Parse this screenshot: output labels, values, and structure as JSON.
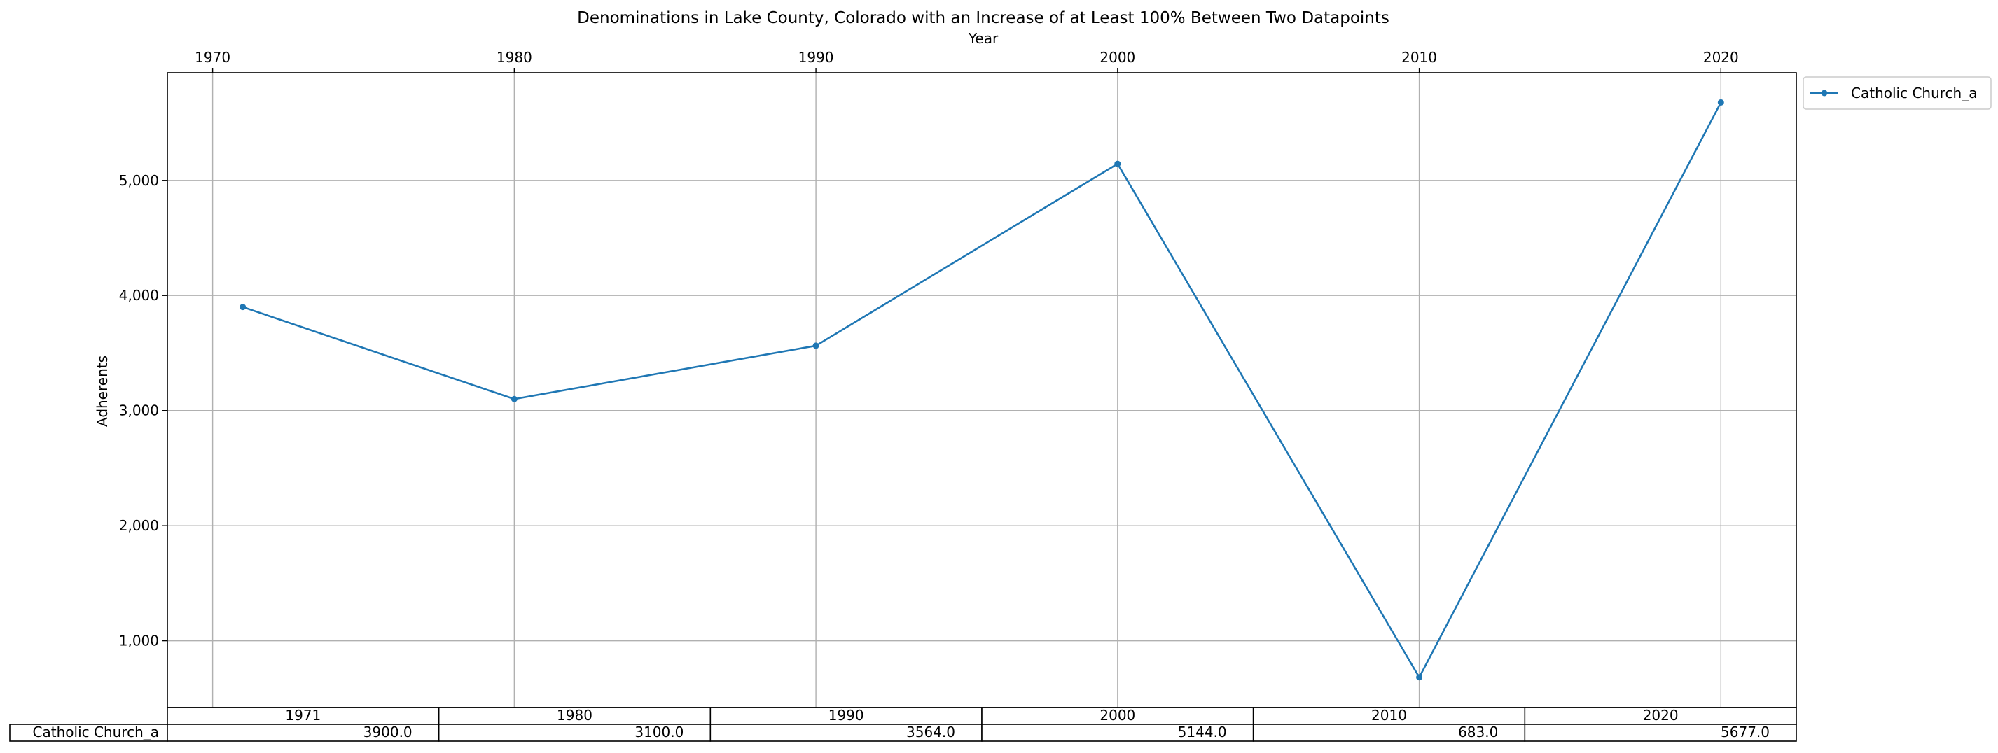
{
  "chart_data": {
    "type": "line",
    "title": "Denominations in Lake County, Colorado with an Increase of at Least 100% Between Two Datapoints",
    "xlabel": "Year",
    "ylabel": "Adherents",
    "x_ticks": [
      1970,
      1980,
      1990,
      2000,
      2010,
      2020
    ],
    "x_tick_labels": [
      "1970",
      "1980",
      "1990",
      "2000",
      "2010",
      "2020"
    ],
    "y_ticks": [
      1000,
      2000,
      3000,
      4000,
      5000
    ],
    "y_tick_labels": [
      "1,000",
      "2,000",
      "3,000",
      "4,000",
      "5,000"
    ],
    "xlim": [
      1968.5,
      2022.5
    ],
    "ylim": [
      420,
      5935
    ],
    "grid": true,
    "legend_position": "outside-top-right",
    "x_axis_position": "top",
    "series": [
      {
        "name": "Catholic Church_a",
        "color": "#1f77b4",
        "x": [
          1971,
          1980,
          1990,
          2000,
          2010,
          2020
        ],
        "y": [
          3900,
          3100,
          3564,
          5144,
          683,
          5677
        ]
      }
    ],
    "table": {
      "columns": [
        "1971",
        "1980",
        "1990",
        "2000",
        "2010",
        "2020"
      ],
      "rows": [
        {
          "label": "Catholic Church_a",
          "cells": [
            "3900.0",
            "3100.0",
            "3564.0",
            "5144.0",
            "683.0",
            "5677.0"
          ]
        }
      ]
    }
  }
}
